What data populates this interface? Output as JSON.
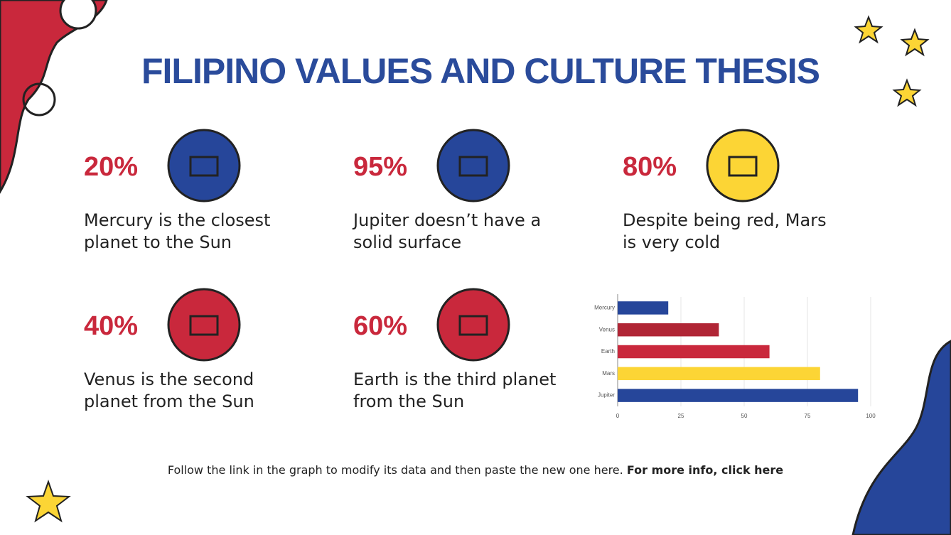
{
  "title": "FILIPINO VALUES AND CULTURE THESIS",
  "stats": [
    {
      "value": "20%",
      "text": "Mercury is the closest planet to the Sun"
    },
    {
      "value": "95%",
      "text": "Jupiter doesn’t have a solid surface"
    },
    {
      "value": "80%",
      "text": "Despite being red, Mars is very cold"
    },
    {
      "value": "40%",
      "text": "Venus is the second planet from the Sun"
    },
    {
      "value": "60%",
      "text": "Earth is the third planet from the Sun"
    }
  ],
  "chart_data": {
    "type": "hbar",
    "categories": [
      "Mercury",
      "Venus",
      "Earth",
      "Mars",
      "Jupiter"
    ],
    "values": [
      20,
      40,
      60,
      80,
      95
    ],
    "colors": [
      "#26469a",
      "#b02535",
      "#c9283c",
      "#fcd535",
      "#26469a"
    ],
    "xlim": [
      0,
      100
    ],
    "xticks": [
      0,
      25,
      50,
      75,
      100
    ],
    "grid": true
  },
  "footer": {
    "text": "Follow the link in the graph to modify its data and then paste the new one here.",
    "link": "For more info, click here"
  }
}
